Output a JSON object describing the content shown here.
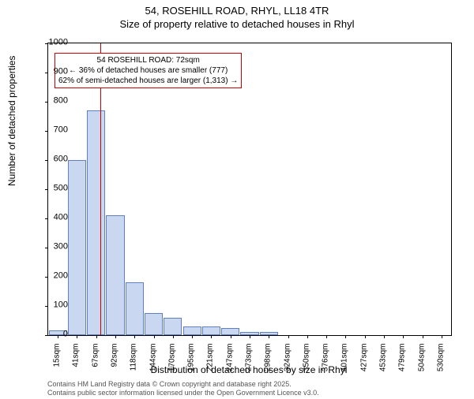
{
  "title": "54, ROSEHILL ROAD, RHYL, LL18 4TR",
  "subtitle": "Size of property relative to detached houses in Rhyl",
  "chart": {
    "type": "bar",
    "ylim": [
      0,
      1000
    ],
    "ytick_step": 100,
    "yticks": [
      0,
      100,
      200,
      300,
      400,
      500,
      600,
      700,
      800,
      900,
      1000
    ],
    "ylabel": "Number of detached properties",
    "xlabel": "Distribution of detached houses by size in Rhyl",
    "xticks": [
      "15sqm",
      "41sqm",
      "67sqm",
      "92sqm",
      "118sqm",
      "144sqm",
      "170sqm",
      "195sqm",
      "221sqm",
      "247sqm",
      "273sqm",
      "298sqm",
      "324sqm",
      "350sqm",
      "376sqm",
      "401sqm",
      "427sqm",
      "453sqm",
      "479sqm",
      "504sqm",
      "530sqm"
    ],
    "values": [
      15,
      600,
      770,
      410,
      180,
      75,
      60,
      30,
      30,
      25,
      10,
      10,
      0,
      0,
      0,
      0,
      0,
      0,
      0,
      0,
      0
    ],
    "bar_fill": "#c9d8f0",
    "bar_stroke": "#6080c0",
    "background": "#ffffff",
    "axis_color": "#000000",
    "marker": {
      "position_category_index": 2.2,
      "color": "#cc0000",
      "box_lines": [
        "54 ROSEHILL ROAD: 72sqm",
        "← 36% of detached houses are smaller (777)",
        "62% of semi-detached houses are larger (1,313) →"
      ]
    }
  },
  "footer": {
    "line1": "Contains HM Land Registry data © Crown copyright and database right 2025.",
    "line2": "Contains public sector information licensed under the Open Government Licence v3.0."
  }
}
